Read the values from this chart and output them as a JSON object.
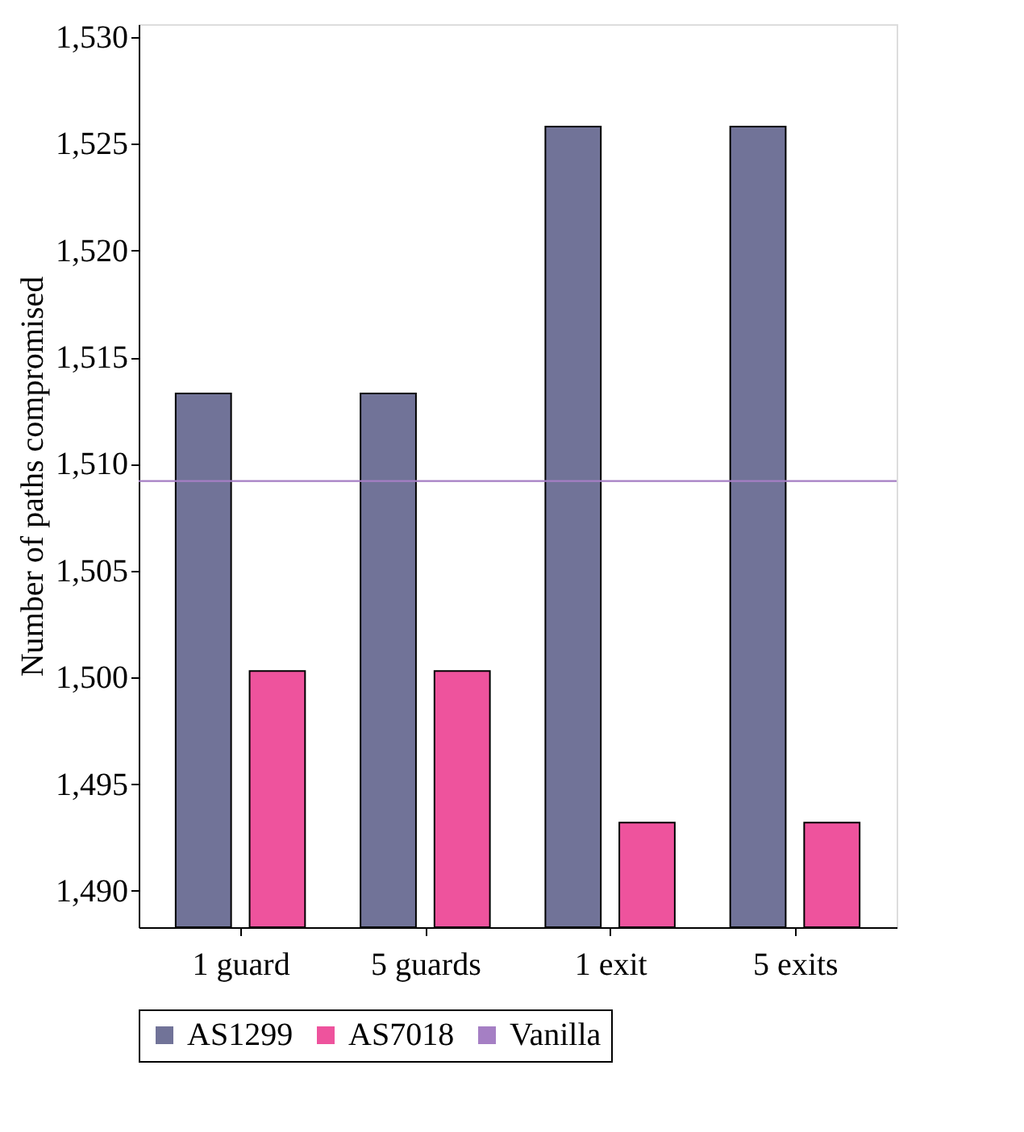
{
  "chart_data": {
    "type": "bar",
    "ylabel": "Number of paths compromised",
    "categories": [
      "1 guard",
      "5 guards",
      "1 exit",
      "5 exits"
    ],
    "series": [
      {
        "name": "AS1299",
        "color": "#717398",
        "values": [
          1513.3,
          1513.3,
          1525.8,
          1525.8
        ]
      },
      {
        "name": "AS7018",
        "color": "#ee539d",
        "values": [
          1500.3,
          1500.3,
          1493.2,
          1493.2
        ]
      }
    ],
    "ref_lines": [
      {
        "axis": "y",
        "value": 1509.2,
        "label": "Vanilla",
        "color": "#a57fc4"
      }
    ],
    "ylim": [
      1488.3,
      1530.6
    ],
    "yticks": [
      {
        "value": 1490,
        "label": "1,490"
      },
      {
        "value": 1495,
        "label": "1,495"
      },
      {
        "value": 1500,
        "label": "1,500"
      },
      {
        "value": 1505,
        "label": "1,505"
      },
      {
        "value": 1510,
        "label": "1,510"
      },
      {
        "value": 1515,
        "label": "1,515"
      },
      {
        "value": 1520,
        "label": "1,520"
      },
      {
        "value": 1525,
        "label": "1,525"
      },
      {
        "value": 1530,
        "label": "1,530"
      }
    ],
    "grid": false,
    "legend": "bottom"
  }
}
